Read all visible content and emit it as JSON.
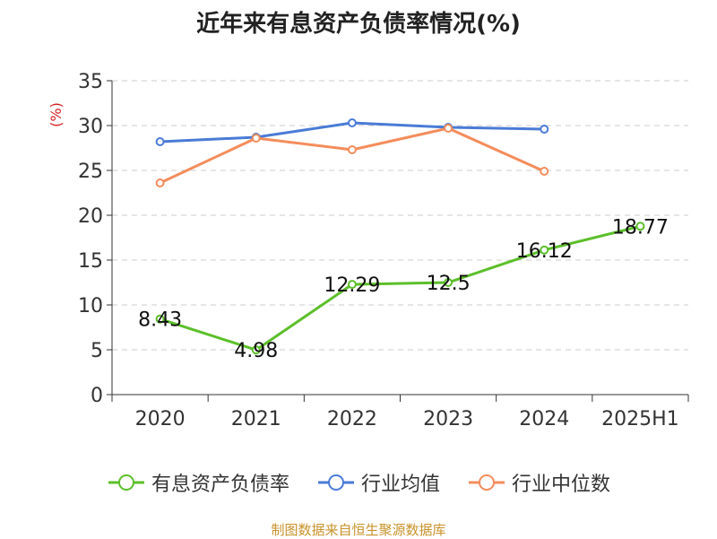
{
  "title": "近年来有息资产负债率情况(%)",
  "source": "制图数据来自恒生聚源数据库",
  "chart_data": {
    "type": "line",
    "title": "近年来有息资产负债率情况(%)",
    "ylabel": "(%)",
    "xlabel": "",
    "categories": [
      "2020",
      "2021",
      "2022",
      "2023",
      "2024",
      "2025H1"
    ],
    "ylim": [
      0,
      35
    ],
    "yticks": [
      "0",
      "5",
      "10",
      "15",
      "20",
      "25",
      "30",
      "35"
    ],
    "grid": "horizontal dashed",
    "legend_position": "bottom",
    "series": [
      {
        "name": "有息资产负债率",
        "color": "#5cbf2a",
        "values": [
          8.43,
          4.98,
          12.29,
          12.5,
          16.12,
          18.77
        ],
        "labels": [
          "8.43",
          "4.98",
          "12.29",
          "12.5",
          "16.12",
          "18.77"
        ],
        "show_labels": true
      },
      {
        "name": "行业均值",
        "color": "#4a7bd6",
        "values": [
          28.2,
          28.7,
          30.3,
          29.8,
          29.6,
          null
        ],
        "show_labels": false
      },
      {
        "name": "行业中位数",
        "color": "#f48d5c",
        "values": [
          23.6,
          28.6,
          27.3,
          29.7,
          24.9,
          null
        ],
        "show_labels": false
      }
    ]
  }
}
